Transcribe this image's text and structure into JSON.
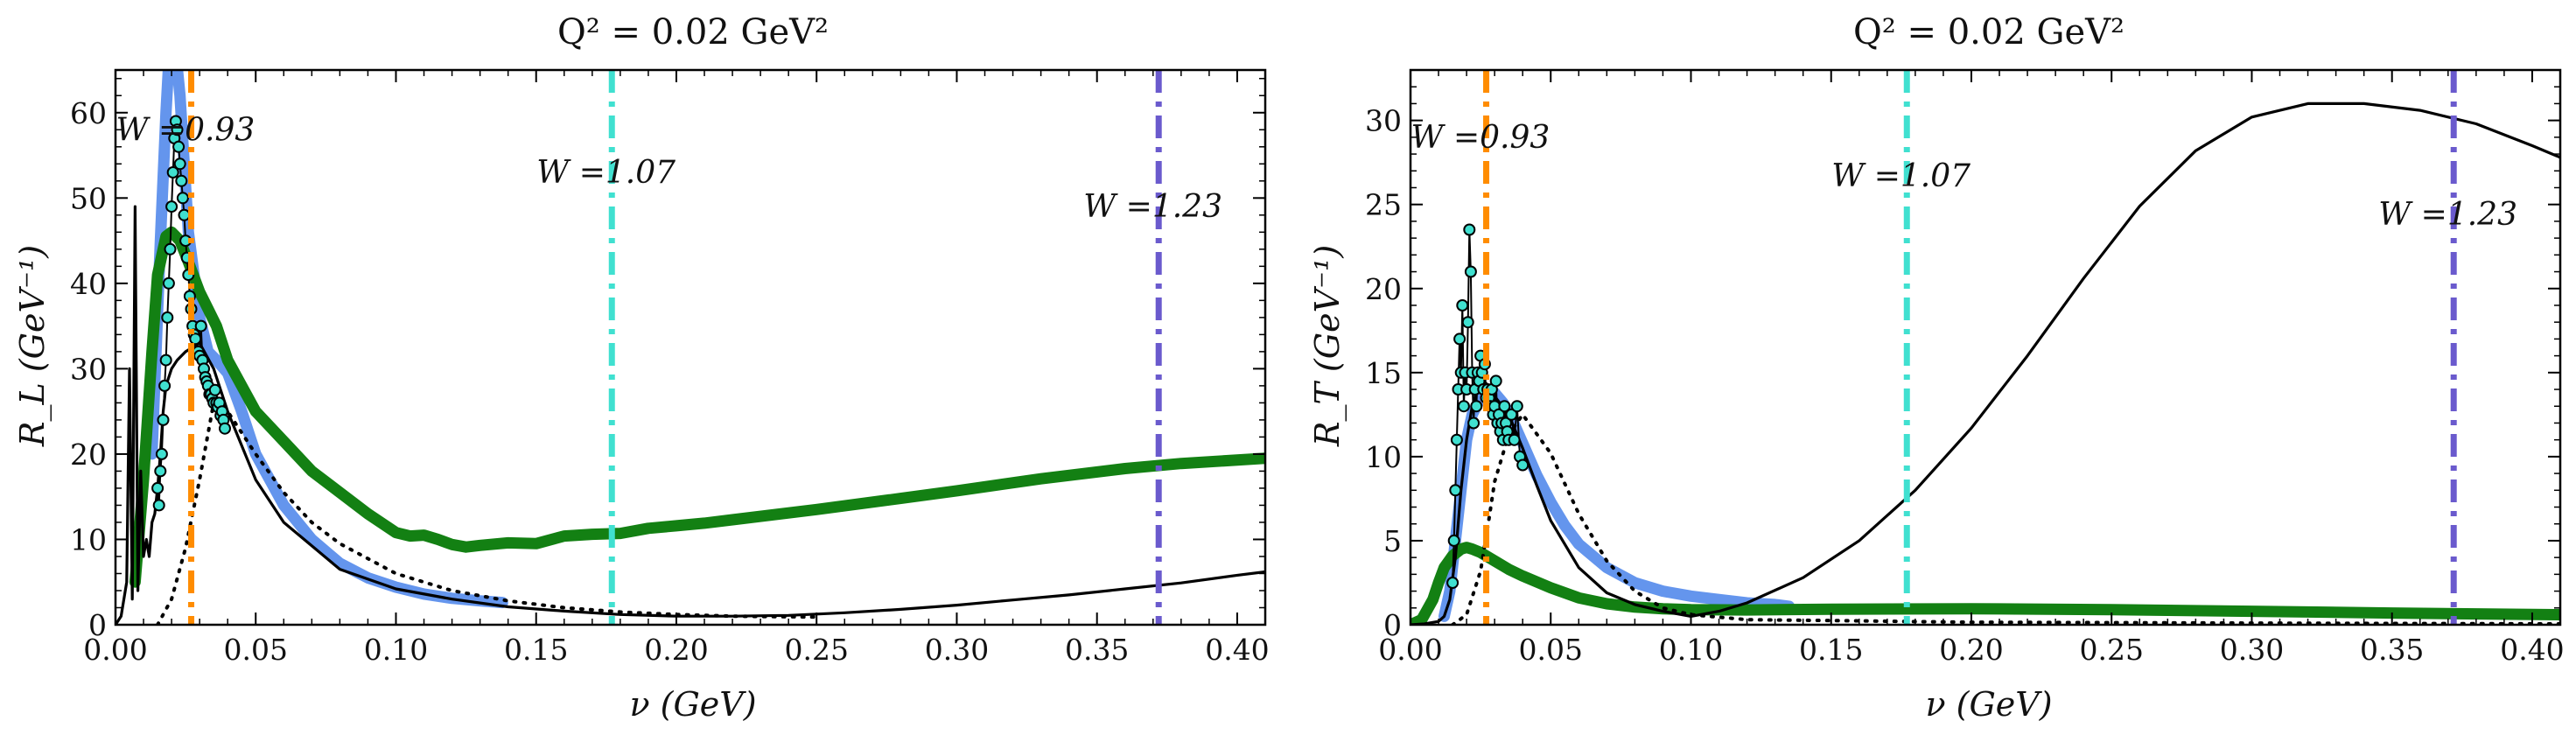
{
  "figure": {
    "background": "#ffffff"
  },
  "chart_data": [
    {
      "type": "line",
      "title": "Q² = 0.02 GeV²",
      "xlabel": "ν (GeV)",
      "ylabel": "R_L (GeV⁻¹)",
      "xlim": [
        0.0,
        0.41
      ],
      "ylim": [
        0,
        65
      ],
      "x_ticks": [
        0.0,
        0.05,
        0.1,
        0.15,
        0.2,
        0.25,
        0.3,
        0.35,
        0.4
      ],
      "x_tick_labels": [
        "0.00",
        "0.05",
        "0.10",
        "0.15",
        "0.20",
        "0.25",
        "0.30",
        "0.35",
        "0.40"
      ],
      "y_ticks": [
        0,
        10,
        20,
        30,
        40,
        50,
        60
      ],
      "y_tick_labels": [
        "0",
        "10",
        "20",
        "30",
        "40",
        "50",
        "60"
      ],
      "grid": false,
      "legend": "none",
      "vlines": [
        {
          "x": 0.027,
          "label": "W =0.93",
          "color": "#ff8c00",
          "label_y": 58
        },
        {
          "x": 0.177,
          "label": "W =1.07",
          "color": "#40e0d0",
          "label_y": 53
        },
        {
          "x": 0.372,
          "label": "W =1.23",
          "color": "#6a5acd",
          "label_y": 49
        }
      ],
      "series": [
        {
          "style": "thick",
          "color": "#6495ed",
          "width": 13,
          "x": [
            0.013,
            0.016,
            0.018,
            0.02,
            0.023,
            0.026,
            0.03,
            0.033,
            0.036,
            0.04,
            0.045,
            0.05,
            0.06,
            0.07,
            0.08,
            0.09,
            0.1,
            0.11,
            0.12,
            0.13,
            0.138
          ],
          "y": [
            20,
            45,
            60,
            72,
            62,
            46,
            36,
            32,
            31,
            29.5,
            25,
            20,
            14,
            10,
            7.2,
            5.5,
            4.4,
            3.6,
            3.1,
            2.8,
            2.6
          ]
        },
        {
          "style": "thick",
          "color": "#138013",
          "width": 13,
          "x": [
            0.007,
            0.01,
            0.013,
            0.015,
            0.018,
            0.02,
            0.023,
            0.026,
            0.03,
            0.033,
            0.036,
            0.04,
            0.05,
            0.06,
            0.07,
            0.08,
            0.09,
            0.1,
            0.105,
            0.11,
            0.115,
            0.12,
            0.125,
            0.13,
            0.14,
            0.15,
            0.16,
            0.17,
            0.18,
            0.19,
            0.2,
            0.21,
            0.22,
            0.25,
            0.28,
            0.3,
            0.33,
            0.36,
            0.38,
            0.41
          ],
          "y": [
            5,
            17,
            32,
            41,
            45.5,
            46,
            45,
            42.5,
            39,
            37,
            35,
            31,
            25,
            21.5,
            18,
            15.5,
            13,
            10.8,
            10.4,
            10.5,
            10,
            9.4,
            9.1,
            9.3,
            9.6,
            9.5,
            10.4,
            10.6,
            10.7,
            11.3,
            11.6,
            11.9,
            12.3,
            13.5,
            14.8,
            15.7,
            17.1,
            18.3,
            18.9,
            19.5
          ]
        },
        {
          "style": "thin",
          "color": "#000000",
          "width": 3.2,
          "x": [
            0.0,
            0.002,
            0.004,
            0.005,
            0.006,
            0.007,
            0.008,
            0.009,
            0.01,
            0.011,
            0.012,
            0.013,
            0.014,
            0.015,
            0.016,
            0.017,
            0.018,
            0.019,
            0.02,
            0.022,
            0.025,
            0.03,
            0.035,
            0.04,
            0.05,
            0.06,
            0.08,
            0.1,
            0.12,
            0.14,
            0.16,
            0.18,
            0.2,
            0.22,
            0.24,
            0.26,
            0.28,
            0.3,
            0.32,
            0.34,
            0.36,
            0.38,
            0.4,
            0.41
          ],
          "y": [
            0,
            1,
            5,
            30,
            3,
            49,
            4,
            18,
            8,
            10,
            8,
            12,
            13,
            16,
            20,
            25,
            28,
            29,
            30,
            31,
            32,
            33,
            30,
            25,
            17,
            12,
            6.5,
            4.2,
            3,
            2.1,
            1.6,
            1.2,
            1,
            1,
            1.1,
            1.4,
            1.8,
            2.3,
            2.9,
            3.5,
            4.2,
            4.9,
            5.8,
            6.2
          ]
        },
        {
          "style": "dotted",
          "color": "#000000",
          "width": 4,
          "x": [
            0.015,
            0.02,
            0.025,
            0.03,
            0.035,
            0.04,
            0.05,
            0.06,
            0.07,
            0.08,
            0.1,
            0.12,
            0.14,
            0.16,
            0.18,
            0.2,
            0.22,
            0.25
          ],
          "y": [
            0,
            3,
            9,
            17,
            26,
            25,
            20,
            15.5,
            12,
            9.5,
            6,
            4,
            2.8,
            2,
            1.5,
            1.2,
            1,
            0.9
          ]
        }
      ],
      "points": {
        "color": "#40e0d0",
        "x": [
          0.015,
          0.0155,
          0.016,
          0.0165,
          0.017,
          0.0175,
          0.018,
          0.0185,
          0.019,
          0.0195,
          0.02,
          0.0205,
          0.021,
          0.0215,
          0.022,
          0.0225,
          0.023,
          0.0235,
          0.024,
          0.0245,
          0.025,
          0.0255,
          0.026,
          0.0265,
          0.027,
          0.0275,
          0.028,
          0.0285,
          0.029,
          0.0295,
          0.03,
          0.0305,
          0.031,
          0.0315,
          0.032,
          0.0325,
          0.033,
          0.0335,
          0.034,
          0.0345,
          0.035,
          0.0355,
          0.036,
          0.0365,
          0.037,
          0.0375,
          0.038,
          0.0385,
          0.039
        ],
        "y": [
          16,
          14,
          18,
          20,
          24,
          28,
          31,
          36,
          40,
          44,
          49,
          53,
          57,
          59,
          58,
          56,
          54,
          52,
          50,
          48,
          45,
          43,
          41,
          38.5,
          37,
          35,
          34,
          33.5,
          32,
          32,
          31.5,
          35,
          31,
          30,
          29,
          28.5,
          28,
          27,
          27,
          26.5,
          26,
          27.5,
          26,
          25.5,
          26,
          24.5,
          25,
          24,
          23
        ]
      }
    },
    {
      "type": "line",
      "title": "Q² = 0.02 GeV²",
      "xlabel": "ν (GeV)",
      "ylabel": "R_T (GeV⁻¹)",
      "xlim": [
        0.0,
        0.41
      ],
      "ylim": [
        0,
        33
      ],
      "x_ticks": [
        0.0,
        0.05,
        0.1,
        0.15,
        0.2,
        0.25,
        0.3,
        0.35,
        0.4
      ],
      "x_tick_labels": [
        "0.00",
        "0.05",
        "0.10",
        "0.15",
        "0.20",
        "0.25",
        "0.30",
        "0.35",
        "0.40"
      ],
      "y_ticks": [
        0,
        5,
        10,
        15,
        20,
        25,
        30
      ],
      "y_tick_labels": [
        "0",
        "5",
        "10",
        "15",
        "20",
        "25",
        "30"
      ],
      "grid": false,
      "legend": "none",
      "vlines": [
        {
          "x": 0.027,
          "label": "W =0.93",
          "color": "#ff8c00",
          "label_y": 29
        },
        {
          "x": 0.177,
          "label": "W =1.07",
          "color": "#40e0d0",
          "label_y": 26.7
        },
        {
          "x": 0.372,
          "label": "W =1.23",
          "color": "#6a5acd",
          "label_y": 24.4
        }
      ],
      "series": [
        {
          "style": "thick",
          "color": "#6495ed",
          "width": 13,
          "x": [
            0.012,
            0.014,
            0.016,
            0.018,
            0.02,
            0.022,
            0.025,
            0.028,
            0.03,
            0.033,
            0.036,
            0.04,
            0.045,
            0.05,
            0.055,
            0.06,
            0.07,
            0.08,
            0.09,
            0.1,
            0.11,
            0.12,
            0.13,
            0.135
          ],
          "y": [
            0.5,
            2,
            5,
            8,
            11,
            12.5,
            13.5,
            14,
            13.8,
            13.2,
            12.3,
            10.8,
            8.9,
            7.3,
            5.9,
            4.8,
            3.4,
            2.5,
            2,
            1.7,
            1.5,
            1.3,
            1.2,
            1.1
          ]
        },
        {
          "style": "thick",
          "color": "#138013",
          "width": 13,
          "x": [
            0.0,
            0.004,
            0.008,
            0.01,
            0.012,
            0.015,
            0.018,
            0.02,
            0.022,
            0.025,
            0.03,
            0.035,
            0.04,
            0.05,
            0.06,
            0.07,
            0.08,
            0.09,
            0.1,
            0.12,
            0.15,
            0.2,
            0.25,
            0.3,
            0.35,
            0.41
          ],
          "y": [
            0,
            0.3,
            1.5,
            2.5,
            3.4,
            4.1,
            4.5,
            4.6,
            4.5,
            4.3,
            3.8,
            3.3,
            2.9,
            2.2,
            1.6,
            1.25,
            1.05,
            0.95,
            0.9,
            0.88,
            0.92,
            0.95,
            0.9,
            0.8,
            0.7,
            0.6
          ]
        },
        {
          "style": "thin",
          "color": "#000000",
          "width": 3.2,
          "x": [
            0.0,
            0.005,
            0.01,
            0.012,
            0.014,
            0.016,
            0.018,
            0.02,
            0.022,
            0.024,
            0.026,
            0.028,
            0.03,
            0.035,
            0.04,
            0.045,
            0.05,
            0.06,
            0.07,
            0.08,
            0.09,
            0.1,
            0.11,
            0.12,
            0.14,
            0.16,
            0.18,
            0.2,
            0.22,
            0.24,
            0.26,
            0.28,
            0.3,
            0.32,
            0.34,
            0.36,
            0.38,
            0.4,
            0.41
          ],
          "y": [
            0,
            0.05,
            0.2,
            0.5,
            1.5,
            4,
            8,
            11,
            13,
            14,
            14.5,
            14.2,
            13.6,
            12.5,
            10.5,
            8.3,
            6.2,
            3.4,
            1.9,
            1.2,
            0.8,
            0.5,
            0.8,
            1.3,
            2.8,
            5,
            8,
            11.7,
            16,
            20.6,
            24.9,
            28.2,
            30.2,
            31,
            31,
            30.6,
            29.8,
            28.5,
            27.8
          ]
        },
        {
          "style": "dotted",
          "color": "#000000",
          "width": 4,
          "x": [
            0.015,
            0.02,
            0.025,
            0.028,
            0.03,
            0.035,
            0.04,
            0.05,
            0.06,
            0.07,
            0.08,
            0.09,
            0.1,
            0.12,
            0.15,
            0.2,
            0.3,
            0.41
          ],
          "y": [
            0,
            0.6,
            3.2,
            6.3,
            8.5,
            11.3,
            12.5,
            10.2,
            6.6,
            3.8,
            2,
            1,
            0.6,
            0.3,
            0.25,
            0.15,
            0.1,
            0.05
          ]
        }
      ],
      "points": {
        "color": "#40e0d0",
        "x": [
          0.015,
          0.0155,
          0.016,
          0.0165,
          0.017,
          0.0175,
          0.018,
          0.0185,
          0.019,
          0.0195,
          0.02,
          0.0205,
          0.021,
          0.0215,
          0.022,
          0.0225,
          0.023,
          0.0235,
          0.024,
          0.0245,
          0.025,
          0.0255,
          0.026,
          0.0265,
          0.027,
          0.0275,
          0.028,
          0.0285,
          0.029,
          0.0295,
          0.03,
          0.0305,
          0.031,
          0.0315,
          0.032,
          0.0325,
          0.033,
          0.0335,
          0.034,
          0.0345,
          0.035,
          0.036,
          0.037,
          0.038,
          0.039,
          0.04
        ],
        "y": [
          2.5,
          5,
          8,
          11,
          14,
          17,
          15,
          19,
          13,
          15,
          14,
          18,
          23.5,
          21,
          15,
          12,
          14,
          13,
          15,
          14.5,
          16,
          15,
          14,
          15.5,
          13.5,
          14,
          13.5,
          13,
          14,
          12.5,
          13,
          14.5,
          12,
          12.5,
          11.5,
          12,
          11,
          13,
          12,
          11.5,
          11,
          12.5,
          11,
          13,
          10,
          9.5
        ]
      }
    }
  ]
}
